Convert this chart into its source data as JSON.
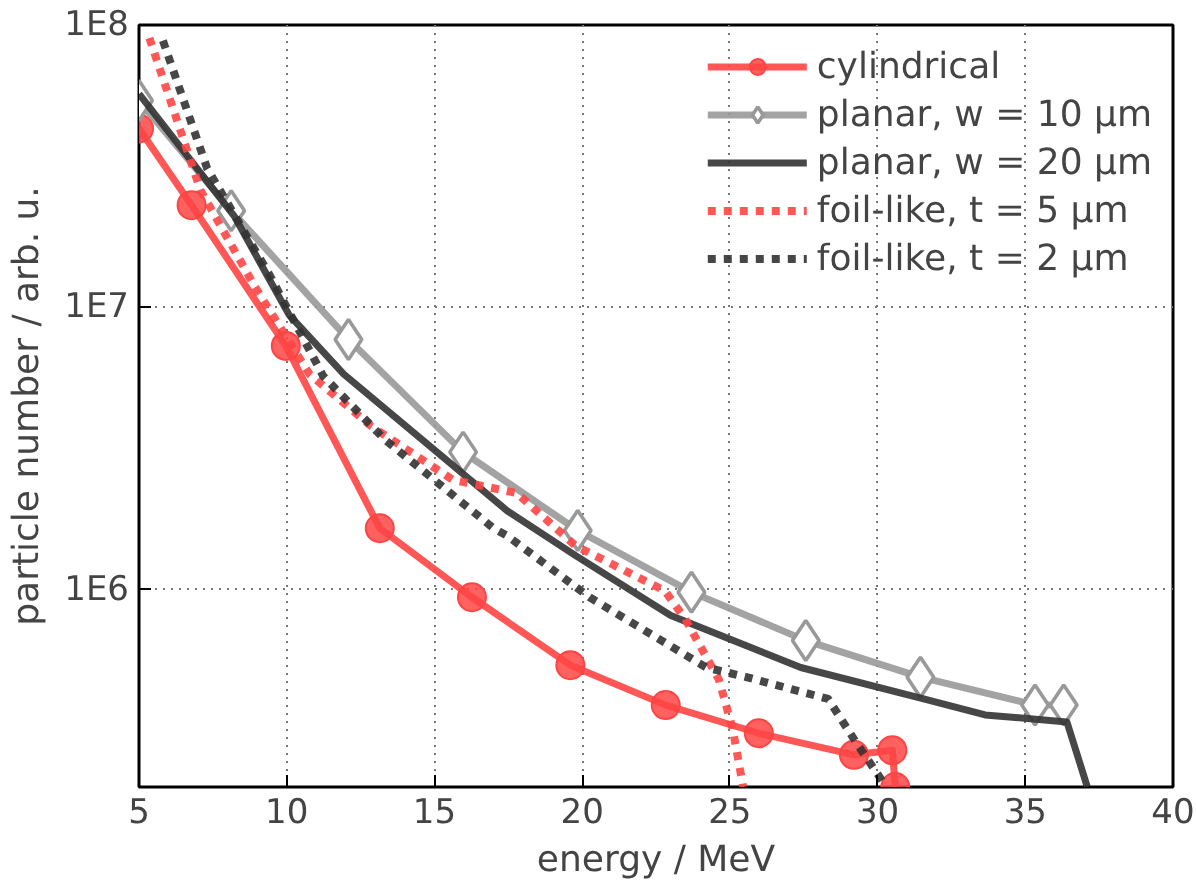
{
  "chart_data": {
    "type": "line",
    "xlabel": "energy / MeV",
    "ylabel": "particle number / arb. u.",
    "log": "y",
    "grid": true,
    "legend": "top right",
    "xlim": [
      5,
      40
    ],
    "xticks": [
      5,
      10,
      15,
      20,
      25,
      30,
      35,
      40
    ],
    "ylim": [
      200000,
      100000000
    ],
    "yticks": [
      {
        "value": 1000000,
        "label": "1E6"
      },
      {
        "value": 10000000,
        "label": "1E7"
      },
      {
        "value": 100000000,
        "label": "1E8"
      }
    ],
    "series": [
      {
        "name": "cylindrical",
        "color": "#ff4444",
        "marker": "circle",
        "line_style": "solid",
        "x": [
          5,
          6.78,
          9.97,
          13.15,
          16.27,
          19.6,
          22.83,
          25.98,
          29.2,
          30.5,
          30.6
        ],
        "values": [
          43000000,
          23000000,
          7300000,
          1650000,
          940000,
          540000,
          390000,
          310000,
          260000,
          270000,
          200000
        ]
      },
      {
        "name": "planar, w = 10 µm",
        "color": "#999999",
        "marker": "diamond",
        "line_style": "solid",
        "x": [
          5,
          8.12,
          12.09,
          15.97,
          19.85,
          23.7,
          27.57,
          31.45,
          35.33,
          36.3
        ],
        "values": [
          54000000,
          22000000,
          7700000,
          3070000,
          1620000,
          980000,
          660000,
          490000,
          390000,
          390000
        ]
      },
      {
        "name": "planar, w = 20 µm",
        "color": "#333333",
        "marker": "none",
        "line_style": "solid",
        "x": [
          5,
          8.23,
          10.08,
          11.93,
          17.47,
          19.78,
          23.0,
          27.4,
          31.56,
          33.64,
          36.41,
          37.1
        ],
        "values": [
          57000000,
          21000000,
          9400000,
          5800000,
          1900000,
          1320000,
          810000,
          530000,
          410000,
          360000,
          340000,
          200000
        ]
      },
      {
        "name": "foil-like, t = 5 µm",
        "color": "#ff4444",
        "marker": "none",
        "line_style": "dotted",
        "x": [
          5.35,
          7.08,
          8.93,
          10.77,
          12.85,
          15.62,
          17.78,
          19.78,
          22.8,
          23.48,
          24.63,
          25.1,
          25.45
        ],
        "values": [
          90000000,
          26000000,
          11800000,
          5800000,
          3800000,
          2450000,
          2200000,
          1430000,
          990000,
          790000,
          480000,
          320000,
          200000
        ]
      },
      {
        "name": "foil-like, t = 2 µm",
        "color": "#333333",
        "marker": "none",
        "line_style": "dotted",
        "x": [
          5.81,
          7.31,
          9.39,
          11.24,
          13.32,
          17.0,
          17.47,
          20.25,
          24.2,
          25.56,
          28.33,
          29.25,
          30.3
        ],
        "values": [
          88000000,
          31000000,
          13200000,
          5700000,
          3400000,
          1650000,
          1550000,
          940000,
          530000,
          490000,
          410000,
          290000,
          200000
        ]
      }
    ]
  }
}
